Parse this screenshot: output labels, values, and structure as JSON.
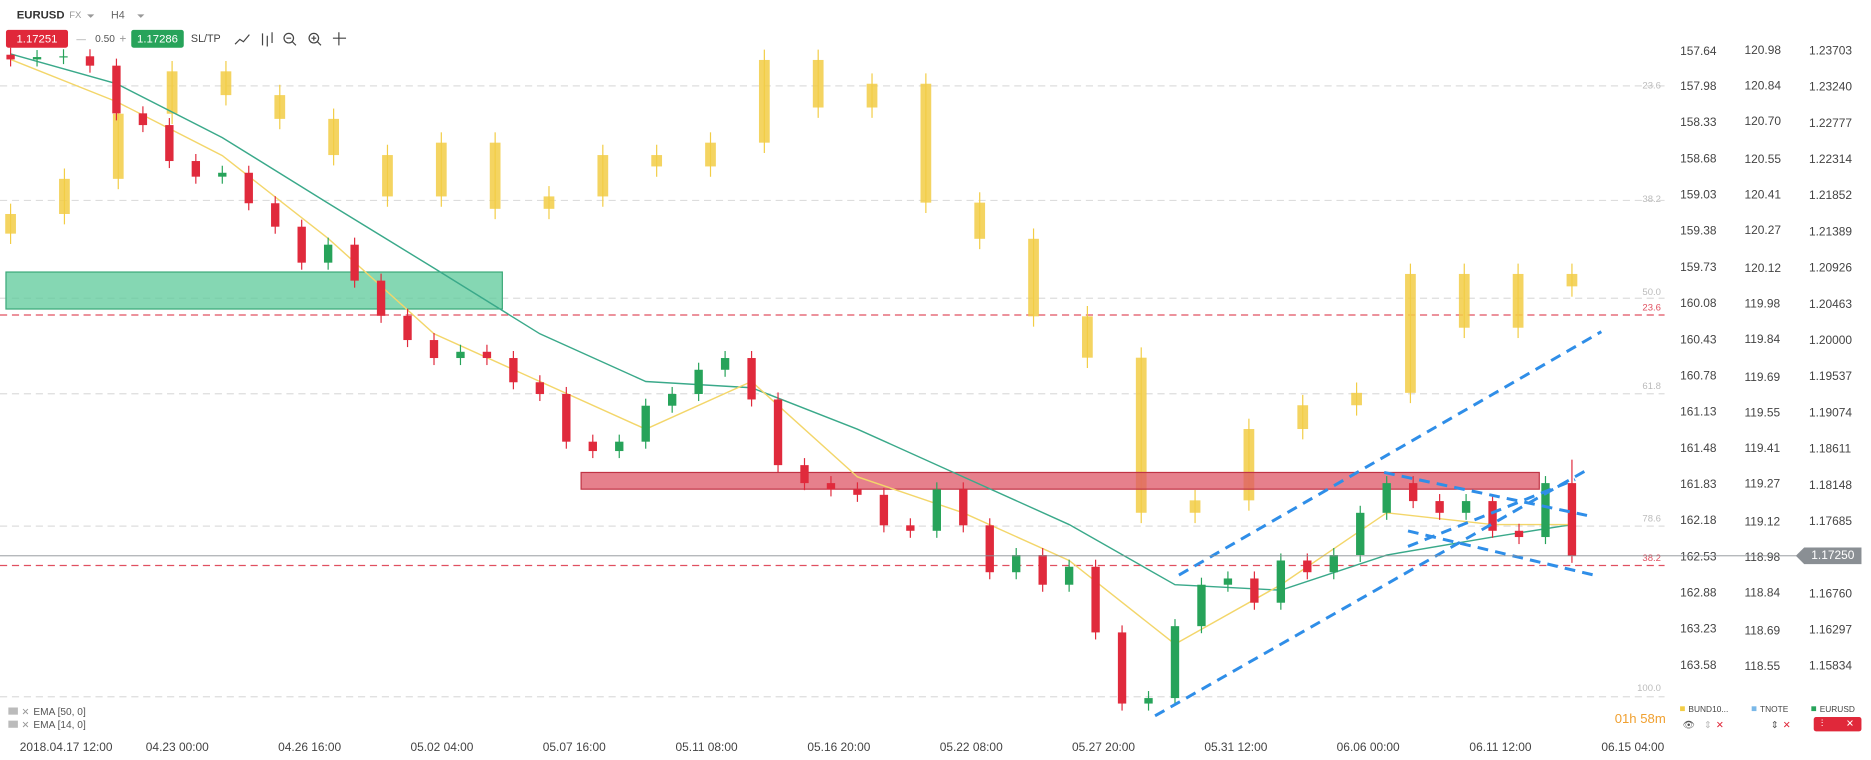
{
  "toolbar": {
    "symbol": "EURUSD",
    "market": "FX",
    "timeframe": "H4",
    "bid": "1.17251",
    "spread": "0.50",
    "ask": "1.17286",
    "sltp": "SL/TP"
  },
  "chart_data": {
    "type": "candlestick",
    "xlim": [
      -0.4,
      62.5
    ],
    "xticks": [
      {
        "value": 2.1,
        "label": "2018.04.17 12:00"
      },
      {
        "value": 6.3,
        "label": "04.23 00:00"
      },
      {
        "value": 11.3,
        "label": "04.26 16:00"
      },
      {
        "value": 16.3,
        "label": "05.02 04:00"
      },
      {
        "value": 21.3,
        "label": "05.07 16:00"
      },
      {
        "value": 26.3,
        "label": "05.11 08:00"
      },
      {
        "value": 31.3,
        "label": "05.16 20:00"
      },
      {
        "value": 36.3,
        "label": "05.22 08:00"
      },
      {
        "value": 41.3,
        "label": "05.27 20:00"
      },
      {
        "value": 46.3,
        "label": "05.31 12:00"
      },
      {
        "value": 51.3,
        "label": "06.06 00:00"
      },
      {
        "value": 56.3,
        "label": "06.11 12:00"
      },
      {
        "value": 61.3,
        "label": "06.15 04:00"
      }
    ],
    "axes": {
      "bund": {
        "ylim": [
          157.14,
          164.18
        ],
        "inverted": true,
        "yticks": [
          157.64,
          157.98,
          158.33,
          158.68,
          159.03,
          159.38,
          159.73,
          160.08,
          160.43,
          160.78,
          161.13,
          161.48,
          161.83,
          162.18,
          162.53,
          162.88,
          163.23,
          163.58
        ]
      },
      "tnote": {
        "name": "TNOTE",
        "ylim": [
          118.31,
          121.18
        ],
        "inverted": false,
        "yticks": [
          120.98,
          120.84,
          {
            "value": 120.7,
            "label": "120.70"
          },
          120.55,
          120.41,
          120.27,
          120.12,
          119.98,
          119.84,
          119.69,
          119.55,
          119.41,
          119.27,
          119.12,
          118.98,
          118.84,
          118.69,
          118.55
        ]
      },
      "y": {
        "ylim": [
          1.1505,
          1.2436
        ],
        "inverted": false,
        "yticks": [
          1.23703,
          {
            "value": 1.2324,
            "label": "1.23240"
          },
          1.22777,
          1.22314,
          1.21852,
          1.21389,
          1.20926,
          1.20463,
          {
            "value": 1.2,
            "label": "1.20000"
          },
          1.19537,
          1.19074,
          1.18611,
          1.18148,
          1.17685,
          {
            "value": 1.1676,
            "label": "1.16760"
          },
          1.16297,
          1.15834
        ]
      }
    },
    "series": [
      {
        "name": "EURUSD",
        "axis": "y",
        "up_color": "#27a35a",
        "down_color": "#e02a3c",
        "open": [
          1.2366,
          1.236,
          1.2363,
          1.2364,
          1.2352,
          1.2291,
          1.2276,
          1.223,
          1.221,
          1.2215,
          1.2176,
          1.2146,
          1.21,
          1.2123,
          1.2077,
          1.2032,
          1.2001,
          1.1978,
          1.1986,
          1.1978,
          1.1947,
          1.1932,
          1.1871,
          1.1859,
          1.1871,
          1.1917,
          1.1932,
          1.1963,
          1.1978,
          1.1925,
          1.1841,
          1.1818,
          1.181,
          1.1803,
          1.1764,
          1.1757,
          1.181,
          1.1764,
          1.1704,
          1.1726,
          1.1688,
          1.1711,
          1.1627,
          1.1536,
          1.1543,
          1.1635,
          1.1688,
          1.1696,
          1.1665,
          1.1719,
          1.1704,
          1.1726,
          1.178,
          1.1818,
          1.1795,
          1.178,
          1.1795,
          1.1757,
          1.1749,
          1.1818
        ],
        "high": [
          1.2375,
          1.2372,
          1.2373,
          1.2373,
          1.2361,
          1.23,
          1.2285,
          1.2239,
          1.2224,
          1.2224,
          1.2185,
          1.2155,
          1.2132,
          1.2132,
          1.2086,
          1.2041,
          1.201,
          1.1995,
          1.1995,
          1.1987,
          1.1956,
          1.1941,
          1.188,
          1.188,
          1.1926,
          1.1941,
          1.1972,
          1.1987,
          1.1987,
          1.1934,
          1.185,
          1.1827,
          1.1819,
          1.1812,
          1.1773,
          1.1819,
          1.1819,
          1.1773,
          1.1735,
          1.1735,
          1.172,
          1.172,
          1.1636,
          1.1552,
          1.1644,
          1.1697,
          1.1705,
          1.1705,
          1.1728,
          1.1728,
          1.1735,
          1.1789,
          1.1827,
          1.1827,
          1.1804,
          1.1804,
          1.1804,
          1.1766,
          1.1827,
          1.1848
        ],
        "low": [
          1.2351,
          1.2351,
          1.2354,
          1.2343,
          1.2282,
          1.2267,
          1.2221,
          1.2201,
          1.2201,
          1.2167,
          1.2137,
          1.2091,
          1.2091,
          1.2068,
          1.2023,
          1.1992,
          1.1969,
          1.1969,
          1.1969,
          1.1938,
          1.1923,
          1.1862,
          1.185,
          1.185,
          1.1862,
          1.1908,
          1.1923,
          1.1954,
          1.1916,
          1.1832,
          1.1809,
          1.1801,
          1.1794,
          1.1755,
          1.1748,
          1.1748,
          1.1755,
          1.1695,
          1.1695,
          1.1679,
          1.1679,
          1.1618,
          1.1527,
          1.1527,
          1.1534,
          1.1626,
          1.1679,
          1.1656,
          1.1656,
          1.1695,
          1.1695,
          1.1717,
          1.1771,
          1.1786,
          1.1771,
          1.1771,
          1.1748,
          1.174,
          1.174,
          1.1716
        ],
        "close": [
          1.236,
          1.2363,
          1.2364,
          1.2352,
          1.2291,
          1.2276,
          1.223,
          1.221,
          1.2215,
          1.2176,
          1.2146,
          1.21,
          1.2123,
          1.2077,
          1.2032,
          1.2001,
          1.1978,
          1.1986,
          1.1978,
          1.1947,
          1.1932,
          1.1871,
          1.1859,
          1.1871,
          1.1917,
          1.1932,
          1.1963,
          1.1978,
          1.1925,
          1.1841,
          1.1818,
          1.181,
          1.1803,
          1.1764,
          1.1757,
          1.181,
          1.1764,
          1.1704,
          1.1726,
          1.1688,
          1.1711,
          1.1627,
          1.1536,
          1.1543,
          1.1635,
          1.1688,
          1.1696,
          1.1665,
          1.1719,
          1.1704,
          1.1726,
          1.178,
          1.1818,
          1.1795,
          1.178,
          1.1795,
          1.1757,
          1.1749,
          1.1818,
          1.1725
        ]
      },
      {
        "name": "BUND10...",
        "axis": "bund",
        "color": "#f2cd45",
        "open": [
          159.4,
          159.21,
          158.87,
          158.24,
          157.83,
          158.06,
          158.29,
          158.64,
          159.04,
          158.52,
          159.16,
          159.04,
          158.64,
          158.75,
          158.52,
          157.72,
          158.18,
          157.95,
          159.1,
          159.45,
          160.2,
          160.6,
          162.1,
          161.98,
          161.29,
          161.06,
          160.94,
          159.79,
          160.31,
          159.79
        ],
        "high": [
          159.5,
          159.31,
          158.97,
          158.34,
          158.16,
          158.39,
          158.74,
          159.14,
          159.14,
          159.26,
          159.26,
          159.14,
          158.85,
          158.85,
          158.62,
          158.28,
          158.28,
          159.2,
          159.55,
          160.3,
          160.7,
          162.2,
          162.2,
          162.08,
          161.39,
          161.16,
          161.04,
          160.41,
          160.41,
          160.01
        ],
        "low": [
          159.11,
          158.77,
          158.14,
          157.73,
          157.73,
          157.96,
          158.19,
          158.54,
          158.42,
          158.42,
          158.94,
          158.54,
          158.54,
          158.42,
          157.62,
          157.62,
          157.85,
          157.85,
          159.0,
          159.35,
          160.1,
          160.5,
          161.88,
          161.19,
          160.96,
          160.84,
          159.69,
          159.69,
          159.69,
          159.69
        ],
        "close": [
          159.21,
          158.87,
          158.24,
          157.83,
          158.06,
          158.29,
          158.64,
          159.04,
          158.52,
          159.16,
          159.04,
          158.64,
          158.75,
          158.52,
          157.72,
          158.18,
          157.95,
          159.1,
          159.45,
          160.2,
          160.6,
          162.1,
          161.98,
          161.29,
          161.06,
          160.94,
          159.79,
          160.31,
          159.79,
          159.91
        ]
      }
    ],
    "indicators": [
      {
        "name": "EMA [50, 0]",
        "color": "#3aa98a",
        "x": [
          0,
          4,
          8,
          12,
          16,
          20,
          24,
          28,
          32,
          36,
          40,
          44,
          48,
          52,
          56,
          59
        ],
        "values": [
          1.2367,
          1.2329,
          1.226,
          1.2176,
          1.2093,
          1.2009,
          1.1948,
          1.194,
          1.1887,
          1.1826,
          1.1765,
          1.1688,
          1.1681,
          1.1726,
          1.1749,
          1.1765
        ]
      },
      {
        "name": "EMA [14, 0]",
        "color": "#f3d66a",
        "x": [
          0,
          4,
          8,
          12,
          16,
          20,
          24,
          28,
          32,
          36,
          40,
          44,
          48,
          52,
          56,
          59
        ],
        "values": [
          1.236,
          1.2306,
          1.2237,
          1.2131,
          1.2009,
          1.1948,
          1.1887,
          1.1948,
          1.1826,
          1.178,
          1.1719,
          1.1612,
          1.1688,
          1.178,
          1.1765,
          1.1765
        ]
      }
    ],
    "last_price": {
      "value": 1.1725,
      "label": "1.17250"
    },
    "fib_labels": [
      "23.6",
      "38.2",
      "50.0",
      "61.8",
      "78.6",
      "100.0"
    ],
    "fib_labels_red": [
      "23.6",
      "38.2"
    ],
    "timer": "01h 58m"
  }
}
